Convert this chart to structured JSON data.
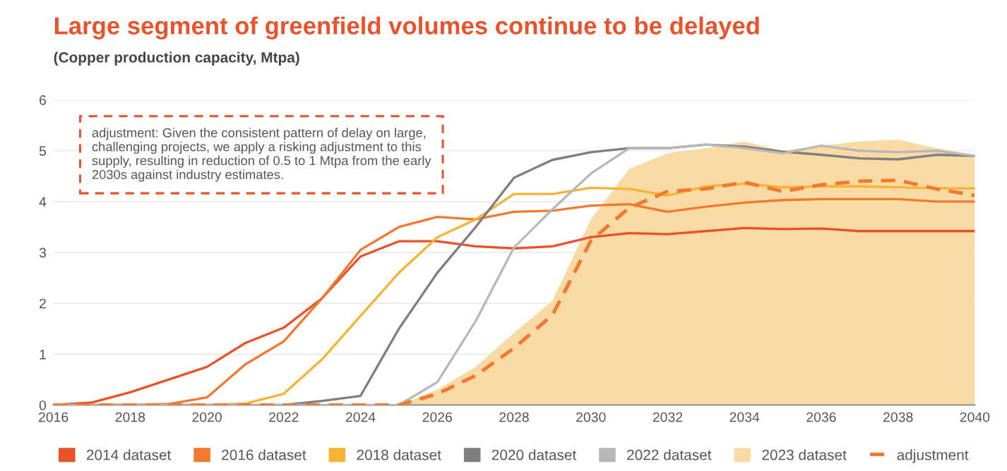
{
  "chart_data": {
    "type": "line",
    "title": "Large segment of greenfield volumes continue to be delayed",
    "subtitle": "(Copper production capacity, Mtpa)",
    "annotations": [
      "adjustment: Given the consistent pattern of delay on large, challenging projects, we apply a risking adjustment to this supply, resulting in reduction of 0.5 to 1 Mtpa from the early 2030s against industry estimates."
    ],
    "x": [
      2016,
      2017,
      2018,
      2019,
      2020,
      2021,
      2022,
      2023,
      2024,
      2025,
      2026,
      2027,
      2028,
      2029,
      2030,
      2031,
      2032,
      2033,
      2034,
      2035,
      2036,
      2037,
      2038,
      2039,
      2040
    ],
    "xlim": [
      2016,
      2040
    ],
    "xticks": [
      2016,
      2018,
      2020,
      2022,
      2024,
      2026,
      2028,
      2030,
      2032,
      2034,
      2036,
      2038,
      2040
    ],
    "ylim": [
      0,
      6
    ],
    "yticks": [
      0,
      1,
      2,
      3,
      4,
      5,
      6
    ],
    "grid": "y",
    "legend": "bottom",
    "series": [
      {
        "name": "2023 dataset",
        "type": "area",
        "color": "#f9d9a4",
        "values": [
          0,
          0,
          0,
          0,
          0,
          0,
          0,
          0,
          0,
          0,
          0.3,
          0.75,
          1.42,
          2.05,
          3.65,
          4.64,
          4.95,
          5.05,
          5.18,
          5.0,
          5.1,
          5.18,
          5.22,
          5.05,
          4.92
        ]
      },
      {
        "name": "2014 dataset",
        "color": "#e8532b",
        "values": [
          0,
          0.05,
          0.25,
          0.5,
          0.75,
          1.22,
          1.52,
          2.1,
          2.92,
          3.22,
          3.22,
          3.12,
          3.08,
          3.12,
          3.3,
          3.38,
          3.36,
          3.42,
          3.48,
          3.46,
          3.47,
          3.42,
          3.42,
          3.42,
          3.42
        ]
      },
      {
        "name": "2016 dataset",
        "color": "#f07a30",
        "values": [
          0,
          0,
          0,
          0.02,
          0.15,
          0.8,
          1.25,
          2.1,
          3.05,
          3.5,
          3.7,
          3.65,
          3.8,
          3.82,
          3.92,
          3.95,
          3.8,
          3.9,
          3.98,
          4.03,
          4.05,
          4.05,
          4.05,
          4.0,
          4.0
        ]
      },
      {
        "name": "2018 dataset",
        "color": "#f7b334",
        "values": [
          0,
          0,
          0,
          0,
          0,
          0.03,
          0.22,
          0.9,
          1.75,
          2.6,
          3.3,
          3.65,
          4.15,
          4.15,
          4.27,
          4.25,
          4.12,
          4.3,
          4.35,
          4.28,
          4.3,
          4.3,
          4.28,
          4.26,
          4.26
        ]
      },
      {
        "name": "2020 dataset",
        "color": "#7f7f7f",
        "values": [
          0,
          0,
          0,
          0,
          0,
          0,
          0,
          0.08,
          0.18,
          1.5,
          2.6,
          3.5,
          4.47,
          4.82,
          4.97,
          5.05,
          5.05,
          5.12,
          5.08,
          4.98,
          4.92,
          4.85,
          4.83,
          4.92,
          4.9
        ]
      },
      {
        "name": "2022 dataset",
        "color": "#b8b8b8",
        "values": [
          0,
          0,
          0,
          0,
          0,
          0,
          0,
          0,
          0,
          0,
          0.45,
          1.65,
          3.1,
          3.85,
          4.55,
          5.05,
          5.05,
          5.12,
          5.05,
          4.95,
          5.1,
          5.0,
          4.97,
          5.0,
          4.9
        ]
      },
      {
        "name": "adjustment",
        "color": "#f07a30",
        "line_style": "dashed",
        "values": [
          0,
          0,
          0,
          0,
          0,
          0,
          0,
          0,
          0,
          0,
          0.22,
          0.58,
          1.12,
          1.77,
          3.23,
          3.88,
          4.2,
          4.25,
          4.38,
          4.2,
          4.33,
          4.4,
          4.42,
          4.25,
          4.12
        ]
      }
    ]
  }
}
